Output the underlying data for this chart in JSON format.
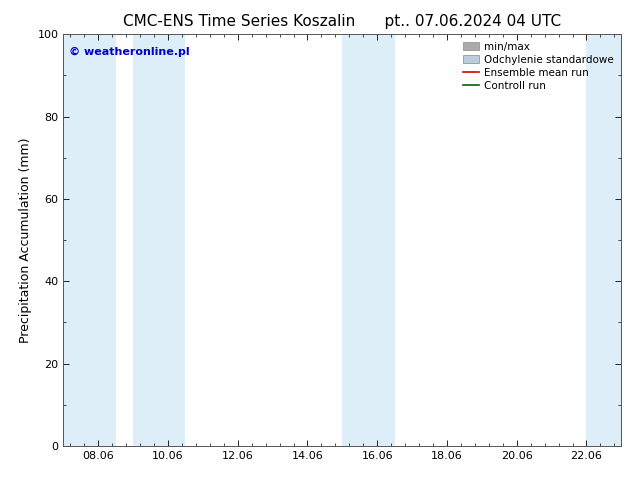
{
  "title": "CMC-ENS Time Series Koszalin      pt.. 07.06.2024 04 UTC",
  "ylabel": "Precipitation Accumulation (mm)",
  "xlabel": "",
  "ylim": [
    0,
    100
  ],
  "xlim": [
    7.0,
    23.0
  ],
  "xtick_positions": [
    8,
    10,
    12,
    14,
    16,
    18,
    20,
    22
  ],
  "xtick_labels": [
    "08.06",
    "10.06",
    "12.06",
    "14.06",
    "16.06",
    "18.06",
    "20.06",
    "22.06"
  ],
  "yticks": [
    0,
    20,
    40,
    60,
    80,
    100
  ],
  "shaded_bands": [
    {
      "x_start": 7.0,
      "x_end": 8.5
    },
    {
      "x_start": 9.0,
      "x_end": 10.5
    },
    {
      "x_start": 15.0,
      "x_end": 16.5
    },
    {
      "x_start": 22.0,
      "x_end": 23.0
    }
  ],
  "band_color": "#ddeef8",
  "background_color": "#ffffff",
  "watermark_text": "© weatheronline.pl",
  "watermark_color": "#0000cc",
  "legend_items": [
    {
      "label": "min/max",
      "color": "#aaaaaa",
      "lw": 4,
      "ls": "-"
    },
    {
      "label": "Odchylenie standardowe",
      "color": "#bbccdd",
      "lw": 4,
      "ls": "-"
    },
    {
      "label": "Ensemble mean run",
      "color": "#dd0000",
      "lw": 1.2,
      "ls": "-"
    },
    {
      "label": "Controll run",
      "color": "#006600",
      "lw": 1.2,
      "ls": "-"
    }
  ],
  "title_fontsize": 11,
  "axis_label_fontsize": 9,
  "tick_fontsize": 8,
  "watermark_fontsize": 8
}
